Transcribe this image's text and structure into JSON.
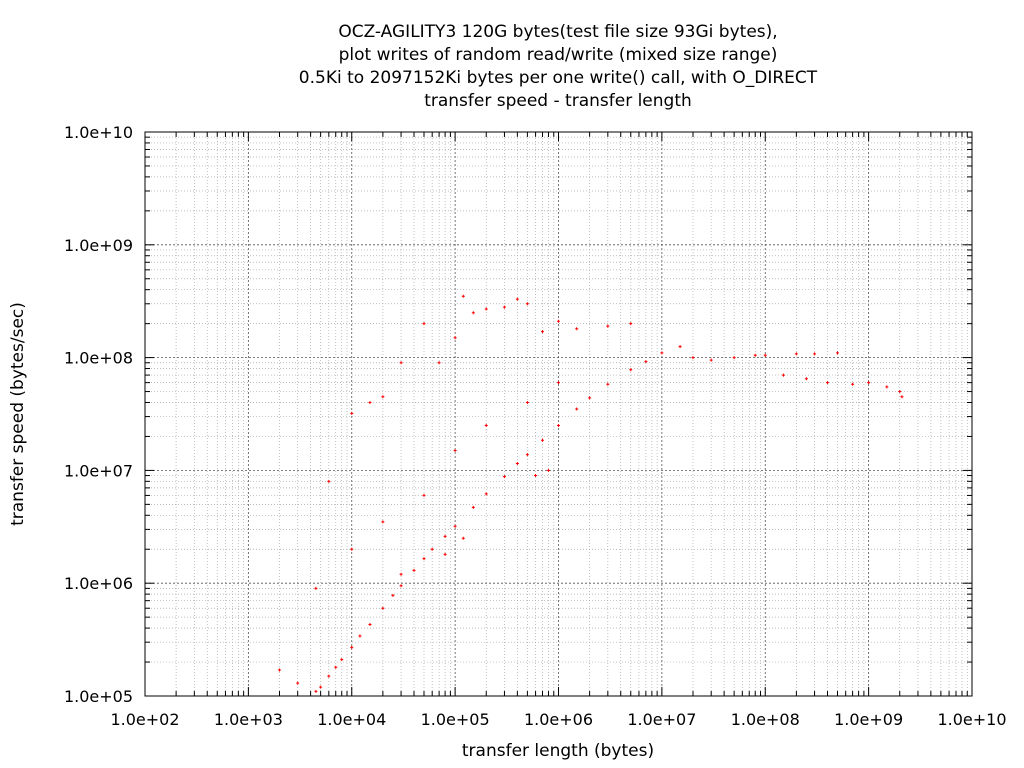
{
  "chart_data": {
    "type": "scatter",
    "title_lines": [
      "OCZ-AGILITY3 120G bytes(test file size 93Gi bytes),",
      "plot writes of random read/write (mixed size range)",
      "0.5Ki to 2097152Ki bytes per one write() call, with O_DIRECT",
      "transfer speed - transfer length"
    ],
    "xlabel": "transfer length (bytes)",
    "ylabel": "transfer speed (bytes/sec)",
    "x_scale": "log",
    "y_scale": "log",
    "xlim": [
      100,
      10000000000
    ],
    "ylim": [
      100000,
      10000000000
    ],
    "x_ticks": [
      "1.0e+02",
      "1.0e+03",
      "1.0e+04",
      "1.0e+05",
      "1.0e+06",
      "1.0e+07",
      "1.0e+08",
      "1.0e+09",
      "1.0e+10"
    ],
    "y_ticks": [
      "1.0e+05",
      "1.0e+06",
      "1.0e+07",
      "1.0e+08",
      "1.0e+09",
      "1.0e+10"
    ],
    "grid": true,
    "point_color": "#ff0000",
    "series": [
      {
        "points": [
          [
            2000,
            170000
          ],
          [
            3000,
            130000
          ],
          [
            4500,
            110000
          ],
          [
            5000,
            120000
          ],
          [
            6000,
            150000
          ],
          [
            7000,
            180000
          ],
          [
            8000,
            210000
          ],
          [
            10000,
            270000
          ],
          [
            12000,
            340000
          ],
          [
            15000,
            430000
          ],
          [
            20000,
            600000
          ],
          [
            25000,
            780000
          ],
          [
            30000,
            950000
          ],
          [
            40000,
            1300000
          ],
          [
            50000,
            1650000
          ],
          [
            60000,
            2000000
          ],
          [
            80000,
            2600000
          ],
          [
            100000,
            3200000
          ],
          [
            150000,
            4700000
          ],
          [
            200000,
            6200000
          ],
          [
            300000,
            8800000
          ],
          [
            400000,
            11500000
          ],
          [
            500000,
            13800000
          ],
          [
            700000,
            18500000
          ],
          [
            1000000,
            25000000
          ],
          [
            1500000,
            35000000
          ],
          [
            2000000,
            44000000
          ],
          [
            3000000,
            58000000
          ],
          [
            5000000,
            78000000
          ],
          [
            7000000,
            92000000
          ],
          [
            10000000,
            110000000
          ],
          [
            15000000,
            125000000
          ],
          [
            20000000,
            100000000
          ],
          [
            30000000,
            95000000
          ],
          [
            50000000,
            100000000
          ],
          [
            80000000,
            105000000
          ],
          [
            100000000,
            105000000
          ],
          [
            200000000,
            108000000
          ],
          [
            300000000,
            108000000
          ],
          [
            500000000,
            110000000
          ],
          [
            150000000,
            70000000
          ],
          [
            250000000,
            65000000
          ],
          [
            400000000,
            60000000
          ],
          [
            700000000,
            58000000
          ],
          [
            1000000000,
            60000000
          ],
          [
            1500000000,
            55000000
          ],
          [
            2000000000,
            50000000
          ],
          [
            2100000000,
            45000000
          ],
          [
            5000000,
            200000000
          ],
          [
            3000000,
            190000000
          ],
          [
            1500000,
            180000000
          ],
          [
            1000000,
            210000000
          ],
          [
            700000,
            170000000
          ],
          [
            500000,
            300000000
          ],
          [
            400000,
            330000000
          ],
          [
            300000,
            280000000
          ],
          [
            200000,
            270000000
          ],
          [
            150000,
            250000000
          ],
          [
            120000,
            350000000
          ],
          [
            100000,
            150000000
          ],
          [
            70000,
            90000000
          ],
          [
            50000,
            200000000
          ],
          [
            30000,
            90000000
          ],
          [
            20000,
            45000000
          ],
          [
            15000,
            40000000
          ],
          [
            10000,
            32000000
          ],
          [
            6000,
            8000000
          ],
          [
            4500,
            900000
          ],
          [
            10000,
            2000000
          ],
          [
            20000,
            3500000
          ],
          [
            50000,
            6000000
          ],
          [
            100000,
            15000000
          ],
          [
            200000,
            25000000
          ],
          [
            500000,
            40000000
          ],
          [
            1000000,
            60000000
          ],
          [
            800000,
            10000000
          ],
          [
            600000,
            9000000
          ],
          [
            120000,
            2500000
          ],
          [
            80000,
            1800000
          ],
          [
            30000,
            1200000
          ]
        ]
      }
    ]
  }
}
